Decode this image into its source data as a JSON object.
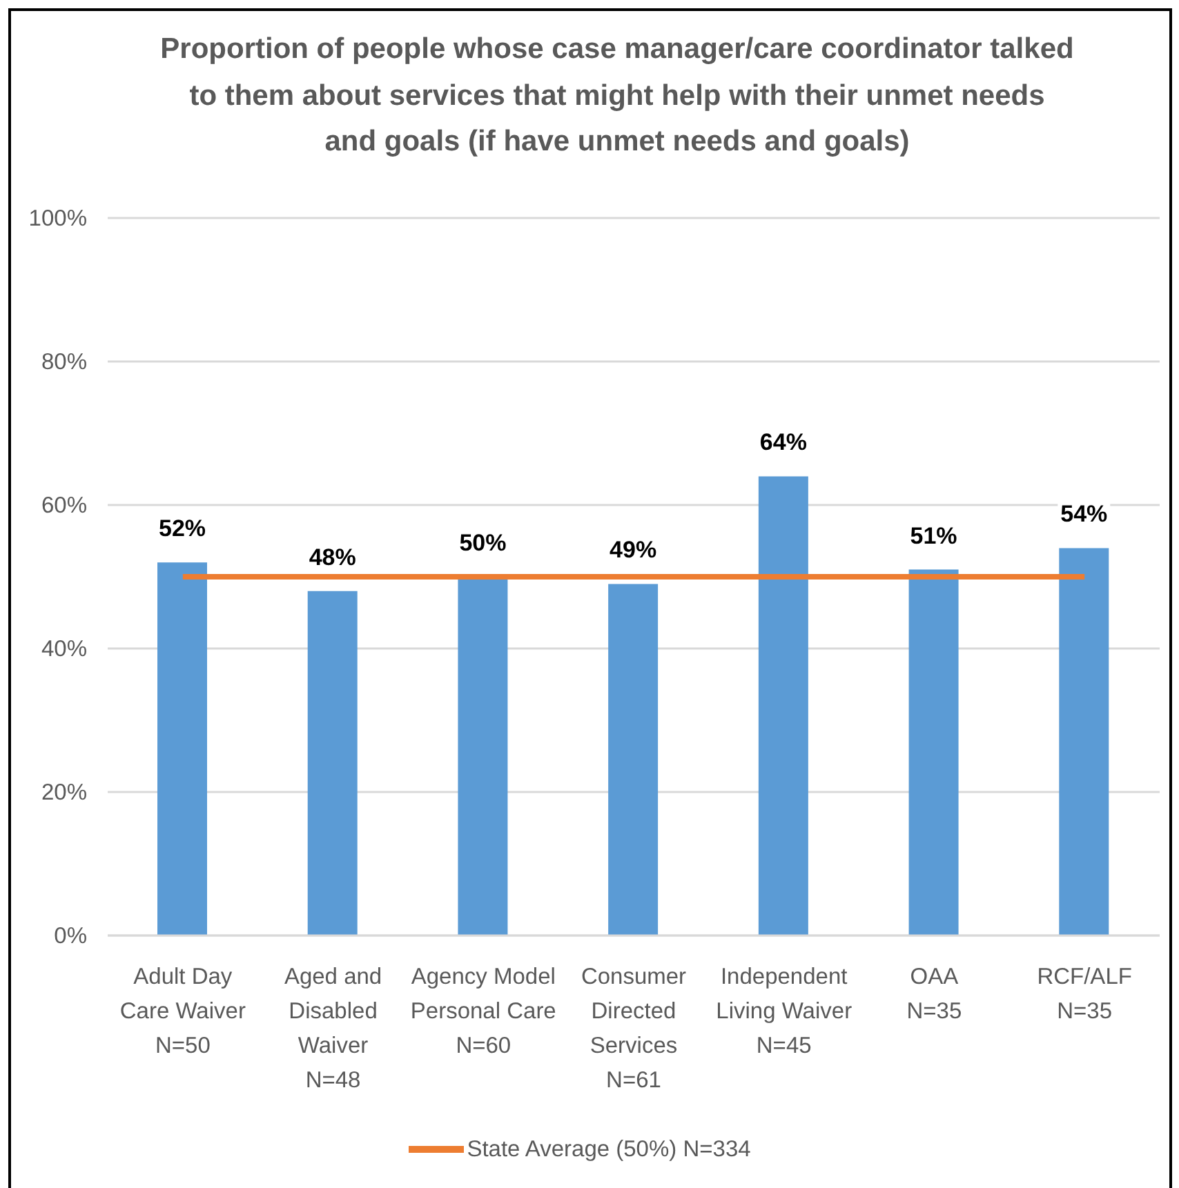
{
  "chart_data": {
    "type": "bar",
    "title": "Proportion of people whose case manager/care coordinator talked\nto them about services that might help with their unmet needs\nand goals (if have unmet needs and goals)",
    "categories": [
      "Adult Day\nCare Waiver\nN=50",
      "Aged and\nDisabled\nWaiver\nN=48",
      "Agency Model\nPersonal Care\nN=60",
      "Consumer\nDirected\nServices\nN=61",
      "Independent\nLiving Waiver\nN=45",
      "OAA\nN=35",
      "RCF/ALF\nN=35"
    ],
    "series": [
      {
        "color": "#5b9bd5",
        "values": [
          52,
          48,
          50,
          49,
          64,
          51,
          54
        ],
        "value_labels": [
          "52%",
          "48%",
          "50%",
          "49%",
          "64%",
          "51%",
          "54%"
        ]
      },
      {
        "type": "line",
        "name": "State Average (50%) N=334",
        "color": "#ed7d31",
        "values": [
          50,
          50,
          50,
          50,
          50,
          50,
          50
        ]
      }
    ],
    "ylim": [
      0,
      100
    ],
    "yticks": [
      {
        "value": 0,
        "label": "0%"
      },
      {
        "value": 20,
        "label": "20%"
      },
      {
        "value": 40,
        "label": "40%"
      },
      {
        "value": 60,
        "label": "60%"
      },
      {
        "value": 80,
        "label": "80%"
      },
      {
        "value": 100,
        "label": "100%"
      }
    ],
    "grid": "y",
    "legend": "bottom"
  }
}
